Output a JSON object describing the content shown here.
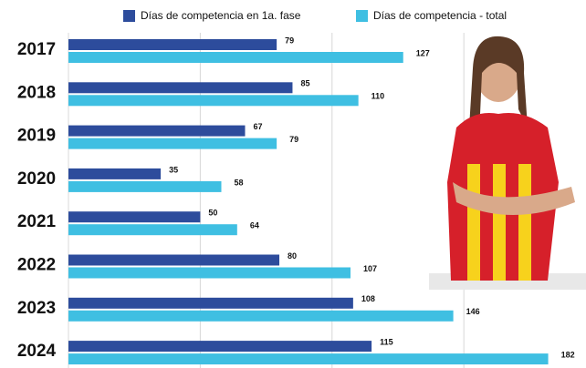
{
  "chart_data": {
    "type": "bar",
    "orientation": "horizontal",
    "categories": [
      "2017",
      "2018",
      "2019",
      "2020",
      "2021",
      "2022",
      "2023",
      "2024"
    ],
    "series": [
      {
        "name": "Días de competencia en 1a. fase",
        "color": "#2d4c9c",
        "values": [
          79,
          85,
          67,
          35,
          50,
          80,
          108,
          115
        ]
      },
      {
        "name": "Días de competencia - total",
        "color": "#3fbfe2",
        "values": [
          127,
          110,
          79,
          58,
          64,
          107,
          146,
          182
        ]
      }
    ],
    "xlim": [
      0,
      196
    ],
    "xticks": [
      0,
      50,
      100,
      150
    ],
    "grid": true
  }
}
